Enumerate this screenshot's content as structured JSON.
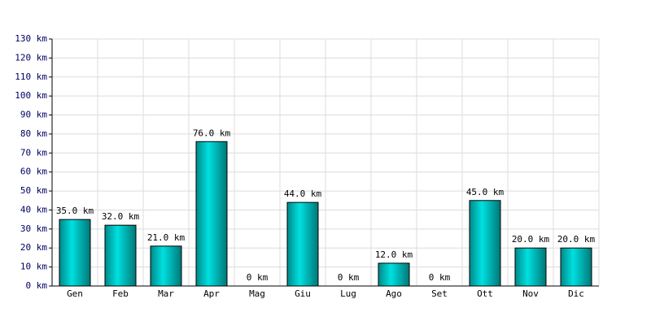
{
  "chart_data": {
    "type": "bar",
    "categories": [
      "Gen",
      "Feb",
      "Mar",
      "Apr",
      "Mag",
      "Giu",
      "Lug",
      "Ago",
      "Set",
      "Ott",
      "Nov",
      "Dic"
    ],
    "values": [
      35,
      32,
      21,
      76,
      0,
      44,
      0,
      12,
      0,
      45,
      20,
      20
    ],
    "value_labels": [
      "35.0 km",
      "32.0 km",
      "21.0 km",
      "76.0 km",
      "0 km",
      "44.0 km",
      "0 km",
      "12.0 km",
      "0 km",
      "45.0 km",
      "20.0 km",
      "20.0 km"
    ],
    "color": "#00e0e0",
    "ylim": [
      0,
      130
    ],
    "yticks": [
      {
        "value": 0,
        "label": "0 km"
      },
      {
        "value": 10,
        "label": "10 km"
      },
      {
        "value": 20,
        "label": "20 km"
      },
      {
        "value": 30,
        "label": "30 km"
      },
      {
        "value": 40,
        "label": "40 km"
      },
      {
        "value": 50,
        "label": "50 km"
      },
      {
        "value": 60,
        "label": "60 km"
      },
      {
        "value": 70,
        "label": "70 km"
      },
      {
        "value": 80,
        "label": "80 km"
      },
      {
        "value": 90,
        "label": "90 km"
      },
      {
        "value": 100,
        "label": "100 km"
      },
      {
        "value": 110,
        "label": "110 km"
      },
      {
        "value": 120,
        "label": "120 km"
      },
      {
        "value": 130,
        "label": "130 km"
      }
    ],
    "grid": true
  }
}
